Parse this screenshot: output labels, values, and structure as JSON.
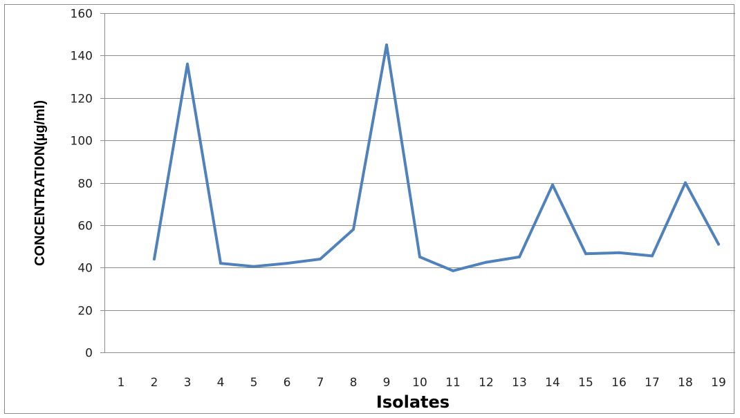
{
  "chart_data": {
    "type": "line",
    "title": "",
    "xlabel": "Isolates",
    "ylabel": "CONCENTRATION(µg/ml)",
    "categories": [
      "1",
      "2",
      "3",
      "4",
      "5",
      "6",
      "7",
      "8",
      "9",
      "10",
      "11",
      "12",
      "13",
      "14",
      "15",
      "16",
      "17",
      "18",
      "19"
    ],
    "series": [
      {
        "values": [
          null,
          44,
          136,
          42,
          40.5,
          42,
          44,
          58,
          145,
          45,
          38.5,
          42.5,
          45,
          79,
          46.5,
          47,
          45.5,
          80,
          51
        ]
      }
    ],
    "ylim": [
      0,
      160
    ],
    "yticks": [
      0,
      20,
      40,
      60,
      80,
      100,
      120,
      140,
      160
    ],
    "grid": true,
    "line_color": "#4f81bd",
    "grid_color": "#8c8c8c"
  }
}
